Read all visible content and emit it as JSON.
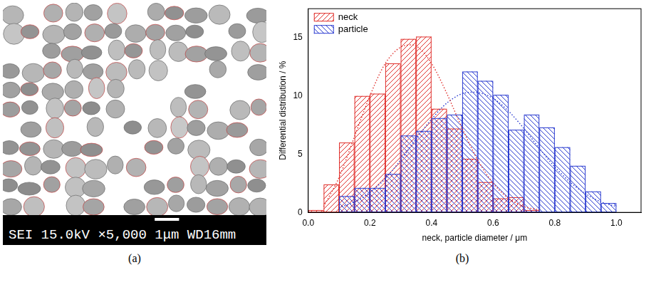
{
  "chart_data": {
    "type": "histogram",
    "panel_label": "(b)",
    "x_label": "neck, particle diameter / μm",
    "y_label": "Differential distribution / %",
    "bins": [
      0,
      0.05,
      0.1,
      0.15,
      0.2,
      0.25,
      0.3,
      0.35,
      0.4,
      0.45,
      0.5,
      0.55,
      0.6,
      0.65,
      0.7,
      0.75,
      0.8,
      0.85,
      0.9,
      0.95,
      1.0,
      1.05
    ],
    "series": [
      {
        "name": "neck",
        "color": "#e0302c",
        "values": [
          0.2,
          2.4,
          6.0,
          10.0,
          10.2,
          12.8,
          14.9,
          15.1,
          8.9,
          7.2,
          4.6,
          2.6,
          1.2,
          1.3,
          0.2,
          0,
          0,
          0,
          0,
          0,
          0
        ]
      },
      {
        "name": "particle",
        "color": "#2a3bd0",
        "values": [
          0,
          0,
          1.4,
          2.1,
          2.1,
          3.3,
          6.6,
          7.0,
          8.1,
          8.4,
          12.1,
          11.3,
          10.1,
          7.1,
          8.4,
          7.3,
          5.6,
          4.0,
          1.8,
          0.8,
          0
        ]
      },
      {
        "type": "line",
        "line_style": "dotted",
        "color": "#e0302c",
        "x": [
          0.05,
          0.1,
          0.15,
          0.2,
          0.25,
          0.3,
          0.35,
          0.4,
          0.45,
          0.5,
          0.55,
          0.6,
          0.65,
          0.7,
          0.75
        ],
        "values": [
          0.5,
          3.0,
          6.5,
          10.0,
          12.8,
          14.2,
          14.3,
          12.8,
          10.2,
          7.2,
          4.5,
          2.5,
          1.2,
          0.5,
          0.2
        ]
      },
      {
        "type": "line",
        "line_style": "dotted",
        "color": "#2a3bd0",
        "x": [
          0.1,
          0.15,
          0.2,
          0.25,
          0.3,
          0.35,
          0.4,
          0.45,
          0.5,
          0.55,
          0.6,
          0.65,
          0.7,
          0.75,
          0.8,
          0.85,
          0.9,
          0.95,
          1.0
        ],
        "values": [
          0.4,
          0.9,
          1.7,
          2.9,
          4.5,
          6.3,
          8.0,
          9.4,
          10.2,
          10.3,
          9.8,
          8.7,
          7.2,
          5.5,
          3.9,
          2.6,
          1.6,
          0.9,
          0.5
        ]
      }
    ],
    "xlim": [
      0,
      1.08
    ],
    "xticks": [
      {
        "value": 0,
        "label": "0.0"
      },
      0.2,
      0.4,
      0.6,
      0.8,
      {
        "value": 1,
        "label": "1.0"
      }
    ],
    "ylim": [
      0,
      17.5
    ],
    "yticks": [
      0,
      5,
      10,
      15
    ],
    "grid": false,
    "legend": "upper left"
  },
  "micrograph": {
    "panel_label": "(a)",
    "info_bar": [
      "SEI",
      "15.0kV",
      "×5,000",
      "1μm",
      "WD16mm"
    ]
  }
}
